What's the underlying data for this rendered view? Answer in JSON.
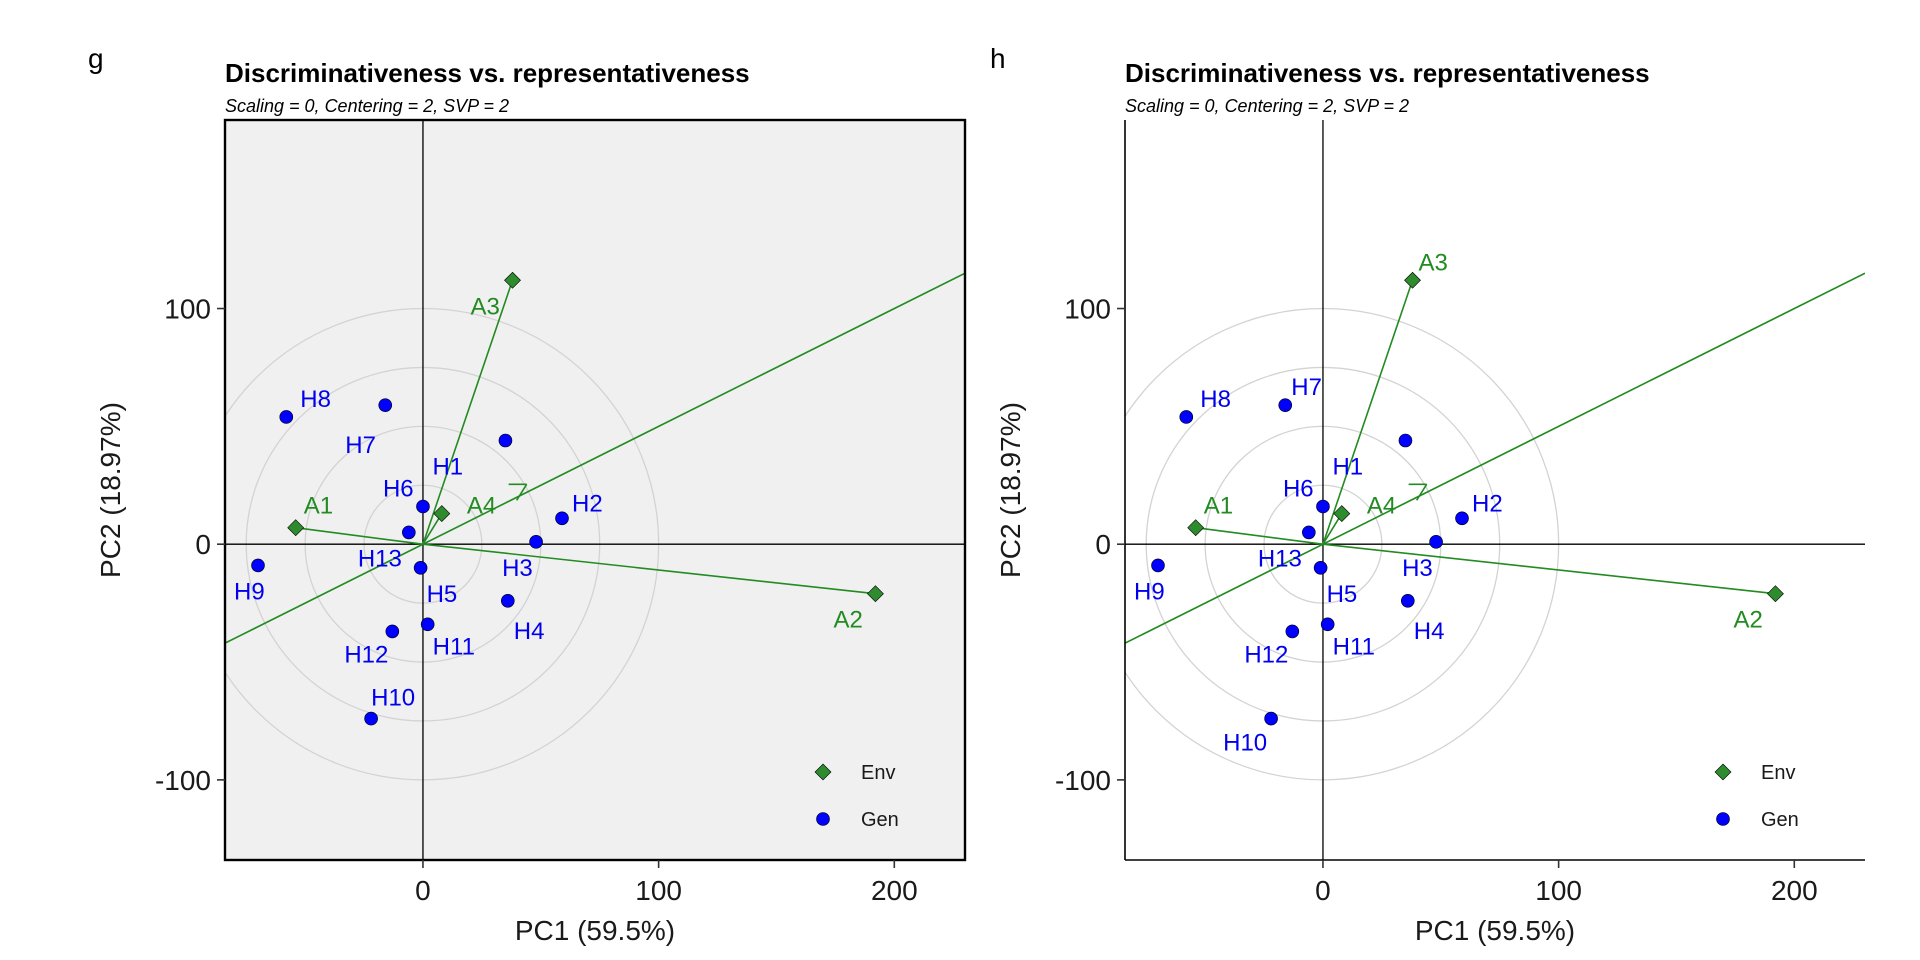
{
  "colors": {
    "env": "#228B22",
    "env_fill": "#2E8B2E",
    "gen": "#0000EE",
    "gen_fill": "#0000FF",
    "circle": "#d3d3d3",
    "panel_bg_g": "#f0f0f0"
  },
  "chart_data": [
    {
      "type": "scatter",
      "panel_letter": "g",
      "title": "Discriminativeness vs. representativeness",
      "subtitle": "Scaling = 0, Centering = 2, SVP = 2",
      "xlabel": "PC1 (59.5%)",
      "ylabel": "PC2 (18.97%)",
      "xlim": [
        -84,
        230
      ],
      "ylim": [
        -134,
        180
      ],
      "xticks": [
        0,
        100,
        200
      ],
      "yticks": [
        -100,
        0,
        100
      ],
      "background": "gray-with-box",
      "legend": {
        "position": "bottom-right",
        "entries": [
          "Env",
          "Gen"
        ]
      },
      "env_points": [
        {
          "name": "A1",
          "x": -54,
          "y": 7
        },
        {
          "name": "A2",
          "x": 192,
          "y": -21
        },
        {
          "name": "A3",
          "x": 38,
          "y": 112
        },
        {
          "name": "A4",
          "x": 8,
          "y": 13
        }
      ],
      "gen_points": [
        {
          "name": "H1",
          "x": 35,
          "y": 44
        },
        {
          "name": "H2",
          "x": 59,
          "y": 11
        },
        {
          "name": "H3",
          "x": 48,
          "y": 1
        },
        {
          "name": "H4",
          "x": 36,
          "y": -24
        },
        {
          "name": "H5",
          "x": -1,
          "y": -10
        },
        {
          "name": "H6",
          "x": 0,
          "y": 16
        },
        {
          "name": "H7",
          "x": -16,
          "y": 59
        },
        {
          "name": "H8",
          "x": -58,
          "y": 54
        },
        {
          "name": "H9",
          "x": -70,
          "y": -9
        },
        {
          "name": "H10",
          "x": -22,
          "y": -74
        },
        {
          "name": "H11",
          "x": 2,
          "y": -34
        },
        {
          "name": "H12",
          "x": -13,
          "y": -37
        },
        {
          "name": "H13",
          "x": -6,
          "y": 5
        }
      ],
      "ave_axis_slope": 0.5,
      "circle_radii": [
        25,
        50,
        75,
        100
      ]
    },
    {
      "type": "scatter",
      "panel_letter": "h",
      "title": "Discriminativeness vs. representativeness",
      "subtitle": "Scaling = 0, Centering = 2, SVP = 2",
      "xlabel": "PC1 (59.5%)",
      "ylabel": "PC2 (18.97%)",
      "xlim": [
        -84,
        230
      ],
      "ylim": [
        -134,
        180
      ],
      "xticks": [
        0,
        100,
        200
      ],
      "yticks": [
        -100,
        0,
        100
      ],
      "background": "white-classic",
      "legend": {
        "position": "bottom-right",
        "entries": [
          "Env",
          "Gen"
        ]
      },
      "env_points": [
        {
          "name": "A1",
          "x": -54,
          "y": 7
        },
        {
          "name": "A2",
          "x": 192,
          "y": -21
        },
        {
          "name": "A3",
          "x": 38,
          "y": 112
        },
        {
          "name": "A4",
          "x": 8,
          "y": 13
        }
      ],
      "gen_points": [
        {
          "name": "H1",
          "x": 35,
          "y": 44
        },
        {
          "name": "H2",
          "x": 59,
          "y": 11
        },
        {
          "name": "H3",
          "x": 48,
          "y": 1
        },
        {
          "name": "H4",
          "x": 36,
          "y": -24
        },
        {
          "name": "H5",
          "x": -1,
          "y": -10
        },
        {
          "name": "H6",
          "x": 0,
          "y": 16
        },
        {
          "name": "H7",
          "x": -16,
          "y": 59
        },
        {
          "name": "H8",
          "x": -58,
          "y": 54
        },
        {
          "name": "H9",
          "x": -70,
          "y": -9
        },
        {
          "name": "H10",
          "x": -22,
          "y": -74
        },
        {
          "name": "H11",
          "x": 2,
          "y": -34
        },
        {
          "name": "H12",
          "x": -13,
          "y": -37
        },
        {
          "name": "H13",
          "x": -6,
          "y": 5
        }
      ],
      "ave_axis_slope": 0.5,
      "circle_radii": [
        25,
        50,
        75,
        100
      ]
    }
  ]
}
